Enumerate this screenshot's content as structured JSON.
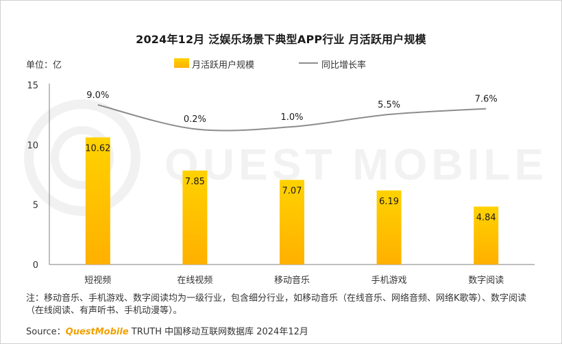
{
  "title": "2024年12月 泛娱乐场景下典型APP行业 月活跃用户规模",
  "unit_label": "单位：亿",
  "watermark": "QUEST MOBILE",
  "note": "注：移动音乐、手机游戏、数字阅读均为一级行业，包含细分行业，如移动音乐（在线音乐、网络音频、网络K歌等）、数字阅读（在线阅读、有声听书、手机动漫等）。",
  "source": {
    "prefix": "Source：",
    "brand": "QuestMobile",
    "suffix": " TRUTH 中国移动互联网数据库 2024年12月"
  },
  "colors": {
    "bar_top": "#ffd200",
    "bar_bottom": "#ffb000",
    "line": "#8c8c8c",
    "axis": "#7f7f7f"
  },
  "chart_data": {
    "type": "bar",
    "categories": [
      "短视频",
      "在线视频",
      "移动音乐",
      "手机游戏",
      "数字阅读"
    ],
    "series": [
      {
        "name": "月活跃用户规模",
        "type": "bar",
        "axis": "left",
        "values": [
          10.62,
          7.85,
          7.07,
          6.19,
          4.84
        ],
        "labels": [
          "10.62",
          "7.85",
          "7.07",
          "6.19",
          "4.84"
        ]
      },
      {
        "name": "同比增长率",
        "type": "line",
        "axis": "right",
        "values": [
          9.0,
          0.2,
          1.0,
          5.5,
          7.6
        ],
        "labels": [
          "9.0%",
          "0.2%",
          "1.0%",
          "5.5%",
          "7.6%"
        ]
      }
    ],
    "yaxis": {
      "ylim": [
        0,
        15
      ],
      "ticks": [
        0,
        5,
        10,
        15
      ]
    },
    "secondary_axis_hidden": true,
    "legend_position": "top-center",
    "grid": false
  }
}
